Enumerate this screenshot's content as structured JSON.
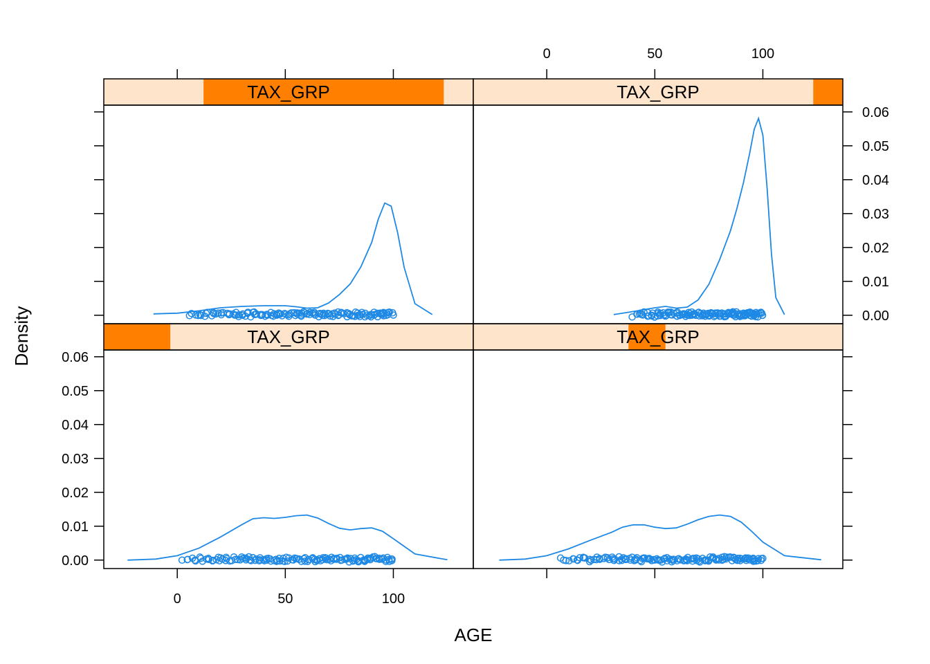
{
  "chart_data": {
    "type": "density",
    "layout": "2x2 lattice panels",
    "xlabel": "AGE",
    "ylabel": "Density",
    "x_ticks": [
      0,
      50,
      100
    ],
    "y_ticks": [
      "0.00",
      "0.01",
      "0.02",
      "0.03",
      "0.04",
      "0.05",
      "0.06"
    ],
    "xlim": [
      -34,
      137
    ],
    "ylim": [
      -0.0025,
      0.062
    ],
    "line_color": "#1e88e5",
    "strip_bg_color": "#ffe4cc",
    "strip_fill_color": "#ff7f00",
    "panels": [
      {
        "position": "bottom-left",
        "strip_label": "TAX_GRP",
        "strip_level_range": [
          0.0,
          0.18
        ],
        "density": {
          "x": [
            -23,
            -10,
            0,
            10,
            20,
            30,
            35,
            40,
            45,
            50,
            55,
            60,
            65,
            70,
            75,
            80,
            85,
            90,
            95,
            100,
            110,
            125
          ],
          "y": [
            0.0,
            0.0003,
            0.0013,
            0.0035,
            0.0068,
            0.0105,
            0.0122,
            0.0125,
            0.0123,
            0.0126,
            0.0131,
            0.0133,
            0.0124,
            0.0108,
            0.0094,
            0.0089,
            0.0093,
            0.0095,
            0.0085,
            0.0063,
            0.0018,
            0.0001
          ]
        },
        "rug": {
          "range": [
            2,
            100
          ],
          "offsets": [
            0.0,
            0.0005
          ]
        }
      },
      {
        "position": "bottom-right",
        "strip_label": "TAX_GRP",
        "strip_level_range": [
          0.42,
          0.52
        ],
        "density": {
          "x": [
            -22,
            -10,
            0,
            10,
            20,
            30,
            35,
            40,
            45,
            50,
            55,
            60,
            65,
            70,
            75,
            80,
            85,
            90,
            95,
            100,
            110,
            127
          ],
          "y": [
            0.0,
            0.0003,
            0.0013,
            0.0033,
            0.0058,
            0.0082,
            0.0097,
            0.0104,
            0.0104,
            0.0097,
            0.0093,
            0.0095,
            0.0106,
            0.0119,
            0.0129,
            0.0133,
            0.0129,
            0.0112,
            0.0084,
            0.0053,
            0.0013,
            0.0001
          ]
        },
        "rug": {
          "range": [
            6,
            100
          ],
          "offsets": [
            0.0,
            0.0005
          ]
        }
      },
      {
        "position": "top-left",
        "strip_label": "TAX_GRP",
        "strip_level_range": [
          0.27,
          0.92
        ],
        "density": {
          "x": [
            -11,
            0,
            10,
            20,
            30,
            40,
            50,
            55,
            60,
            65,
            70,
            75,
            80,
            85,
            90,
            93,
            96,
            99,
            102,
            105,
            110,
            118
          ],
          "y": [
            0.0004,
            0.0006,
            0.0013,
            0.0022,
            0.0026,
            0.0028,
            0.0028,
            0.0025,
            0.0021,
            0.0022,
            0.0036,
            0.0061,
            0.0092,
            0.0143,
            0.0215,
            0.0283,
            0.0331,
            0.0322,
            0.0243,
            0.0141,
            0.0034,
            0.0002
          ]
        },
        "rug": {
          "range": [
            5,
            100
          ],
          "offsets": [
            0.0,
            0.0005
          ]
        }
      },
      {
        "position": "top-right",
        "strip_label": "TAX_GRP",
        "strip_level_range": [
          0.92,
          1.0
        ],
        "density": {
          "x": [
            31,
            40,
            50,
            55,
            60,
            65,
            70,
            75,
            80,
            85,
            88,
            91,
            94,
            96,
            98,
            100,
            102,
            104,
            106,
            110
          ],
          "y": [
            0.0002,
            0.0011,
            0.0022,
            0.0026,
            0.0021,
            0.0024,
            0.0045,
            0.0091,
            0.0164,
            0.0249,
            0.0315,
            0.0391,
            0.0481,
            0.0549,
            0.0581,
            0.0531,
            0.0372,
            0.0181,
            0.0052,
            0.0002
          ]
        },
        "rug": {
          "range": [
            40,
            100
          ],
          "offsets": [
            0.0,
            0.0005
          ]
        }
      }
    ]
  }
}
